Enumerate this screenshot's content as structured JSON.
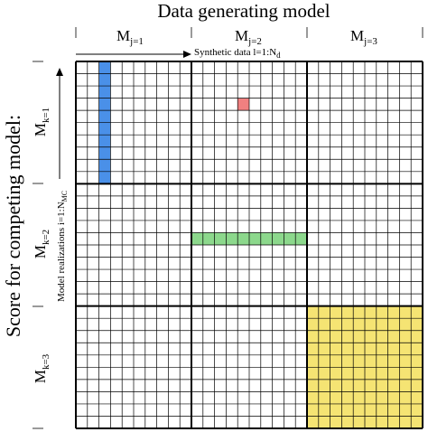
{
  "title": "Data generating model",
  "ylabel": "Score for competing model:",
  "x_axis": {
    "label_main": "Synthetic data l=1:N",
    "label_sub": "d",
    "columns": [
      {
        "main": "M",
        "sub": "j=1"
      },
      {
        "main": "M",
        "sub": "j=2"
      },
      {
        "main": "M",
        "sub": "j=3"
      }
    ]
  },
  "y_axis": {
    "label_main": "Model realizations i=1:N",
    "label_sub": "MC",
    "rows": [
      {
        "main": "M",
        "sub": "k=1"
      },
      {
        "main": "M",
        "sub": "k=2"
      },
      {
        "main": "M",
        "sub": "k=3"
      }
    ]
  },
  "grid": {
    "blocks": 3,
    "cells_per_block": 10
  },
  "highlights": [
    {
      "name": "blue-column",
      "color": "#4a90e8",
      "col_start": 2,
      "col_end": 2,
      "row_start": 0,
      "row_end": 9
    },
    {
      "name": "red-cell",
      "color": "#f08080",
      "col_start": 14,
      "col_end": 14,
      "row_start": 3,
      "row_end": 3
    },
    {
      "name": "green-row",
      "color": "#8cd88c",
      "col_start": 10,
      "col_end": 19,
      "row_start": 14,
      "row_end": 14
    },
    {
      "name": "yellow-block",
      "color": "#f5e473",
      "col_start": 20,
      "col_end": 29,
      "row_start": 20,
      "row_end": 29
    }
  ]
}
